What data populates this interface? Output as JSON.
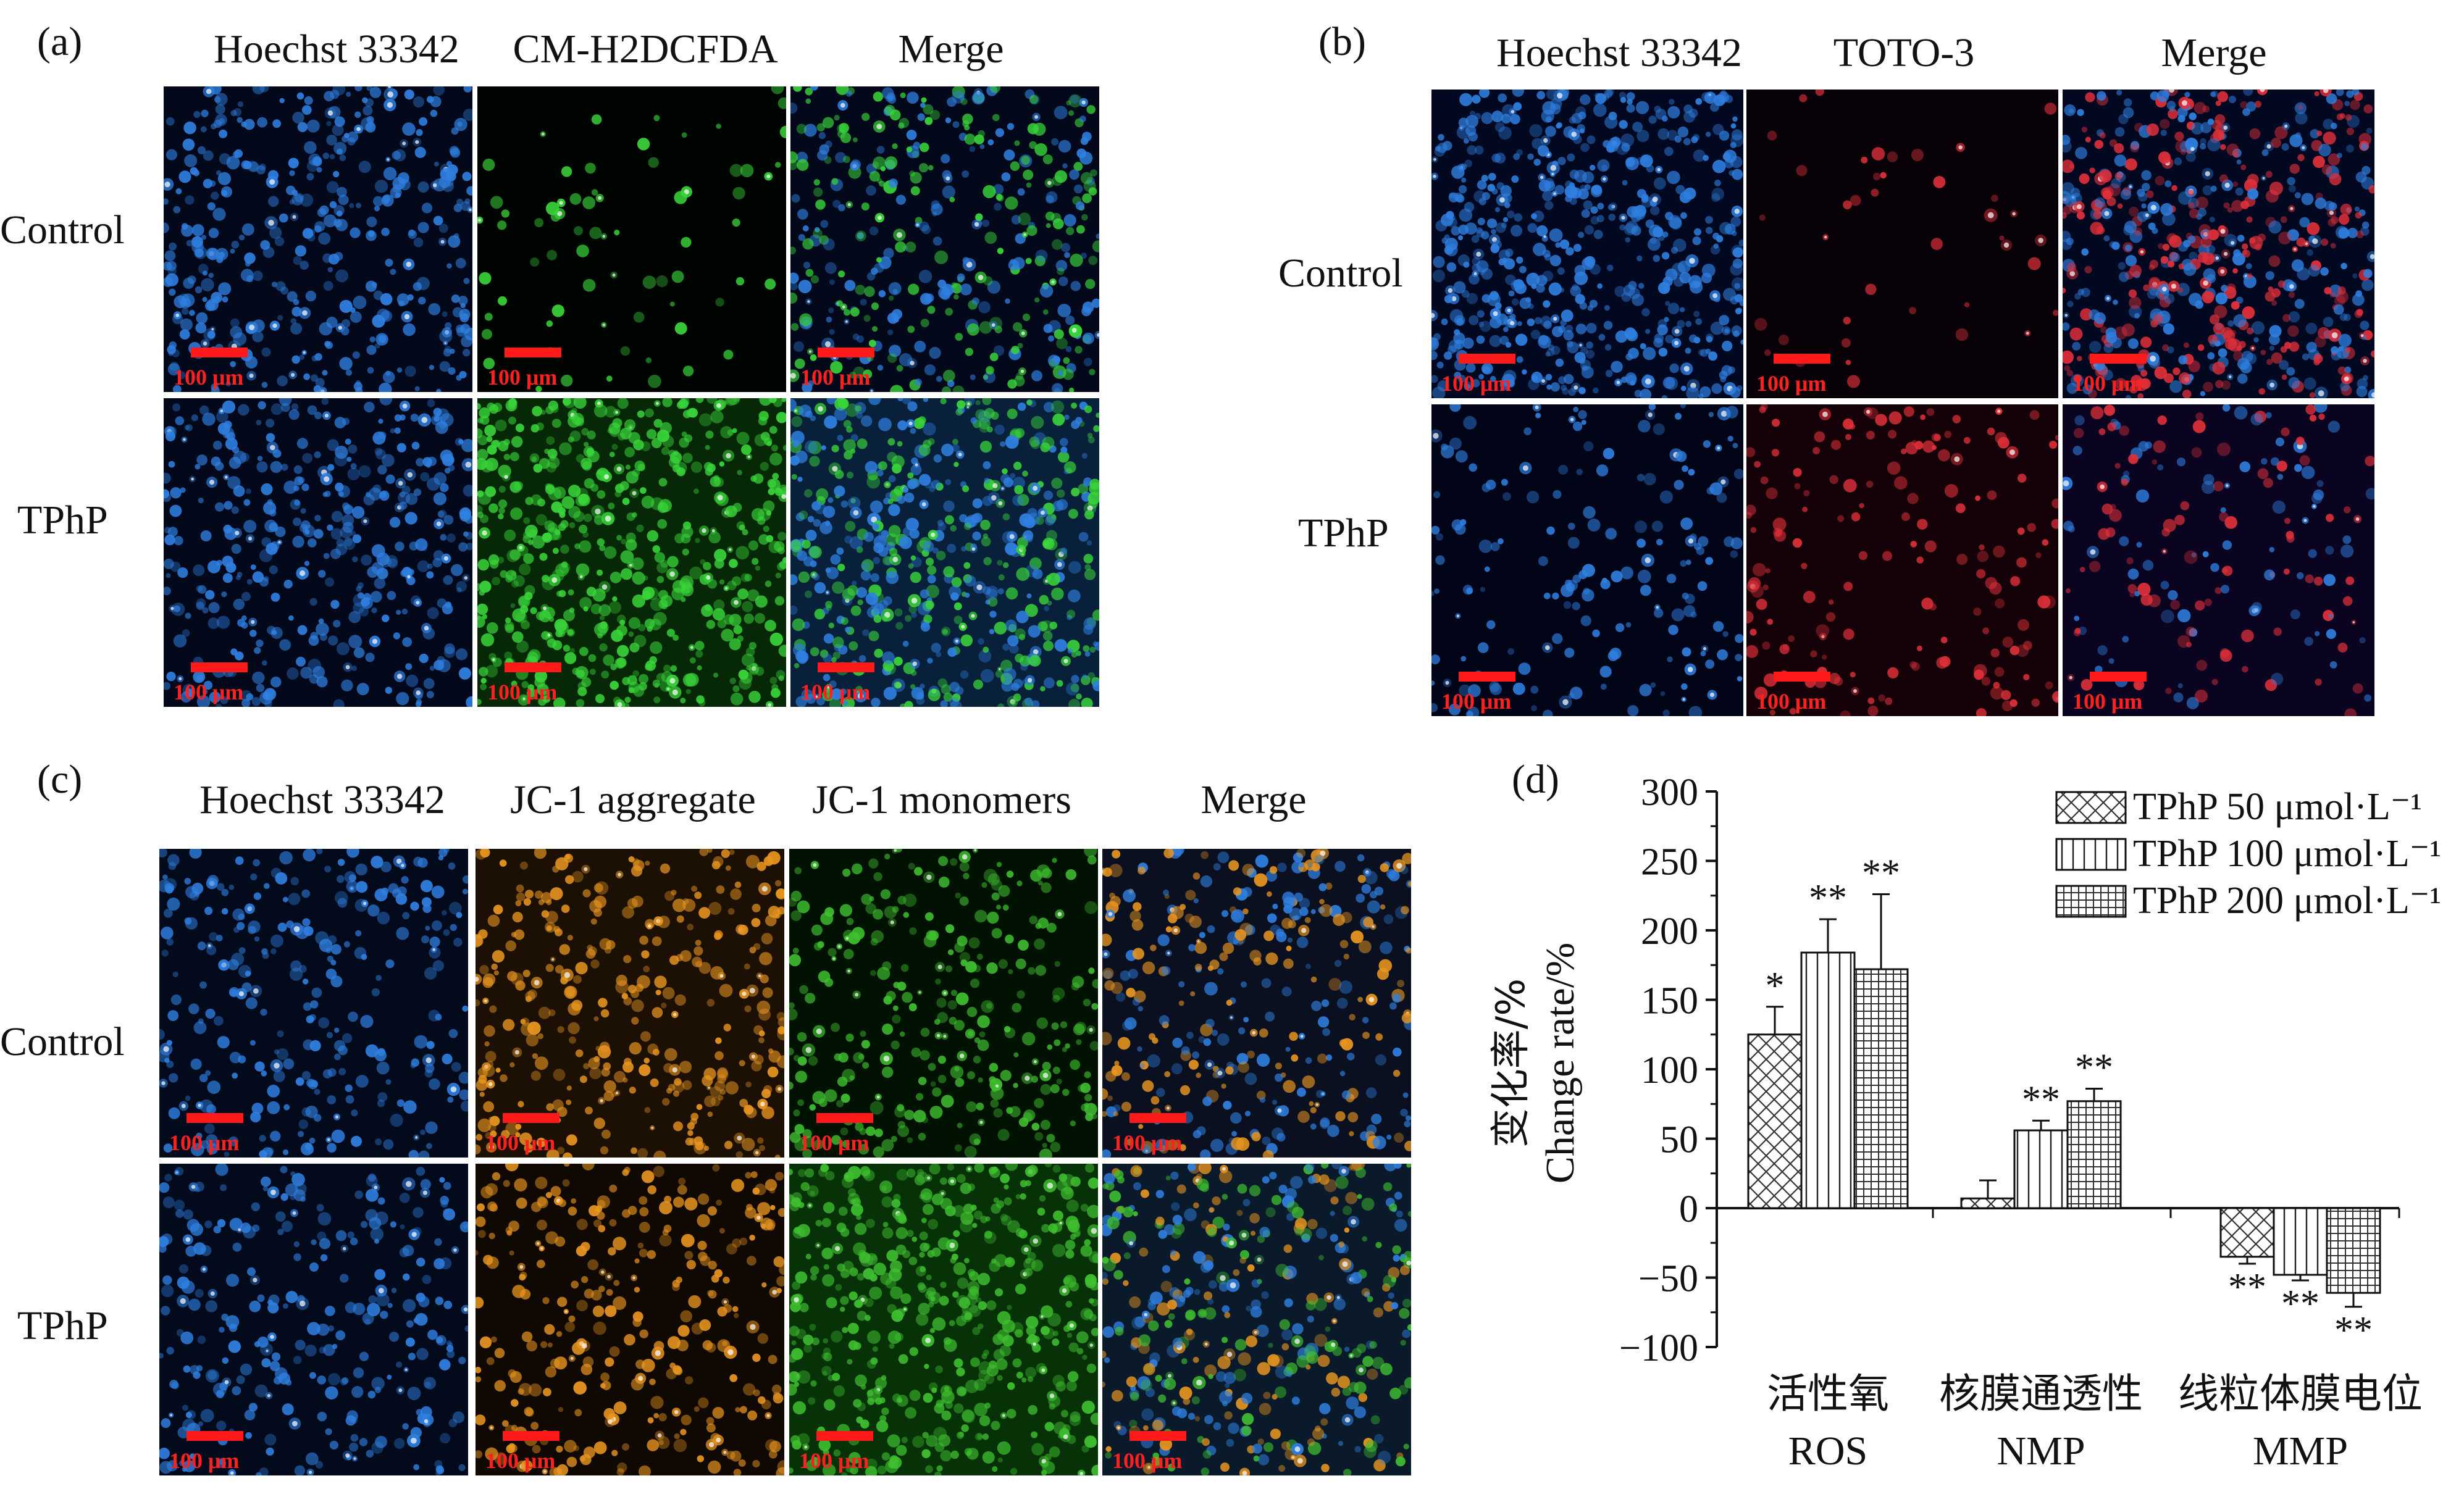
{
  "panels": {
    "a": {
      "tag": "(a)",
      "columns": [
        "Hoechst 33342",
        "CM-H2DCFDA",
        "Merge"
      ],
      "rows": [
        "Control",
        "TPhP"
      ]
    },
    "b": {
      "tag": "(b)",
      "columns": [
        "Hoechst 33342",
        "TOTO-3",
        "Merge"
      ],
      "rows": [
        "Control",
        "TPhP"
      ]
    },
    "c": {
      "tag": "(c)",
      "columns": [
        "Hoechst 33342",
        "JC-1 aggregate",
        "JC-1 monomers",
        "Merge"
      ],
      "rows": [
        "Control",
        "TPhP"
      ]
    },
    "d": {
      "tag": "(d)"
    }
  },
  "scale_bar_label": "100 μm",
  "colors": {
    "hoechst": "#2f7fe0",
    "cm_h2dcfda": "#39d43a",
    "toto3": "#e0303a",
    "jc1_aggregate": "#e89520",
    "jc1_monomer": "#3fbf30",
    "scale_bar": "#ff1a1a"
  },
  "chart_data": {
    "type": "bar",
    "categories": [
      "活性氧",
      "核膜通透性",
      "线粒体膜电位"
    ],
    "category_sublabels": [
      "ROS",
      "NMP",
      "MMP"
    ],
    "ylabel_cn": "变化率/%",
    "ylabel_en": "Change rate/%",
    "ylim": [
      -100,
      300
    ],
    "yticks": [
      -100,
      -50,
      0,
      50,
      100,
      150,
      200,
      250,
      300
    ],
    "ytick_labels": [
      "−100",
      "−50",
      "0",
      "50",
      "100",
      "150",
      "200",
      "250",
      "300"
    ],
    "legend_position": "top-right",
    "series": [
      {
        "name": "TPhP 50 μmol·L⁻¹",
        "pattern": "crosshatch",
        "values": [
          125,
          7,
          -35
        ],
        "errors": [
          20,
          13,
          5
        ],
        "significance": [
          "*",
          "",
          "**"
        ]
      },
      {
        "name": "TPhP 100 μmol·L⁻¹",
        "pattern": "vertical",
        "values": [
          184,
          56,
          -48
        ],
        "errors": [
          24,
          7,
          4
        ],
        "significance": [
          "**",
          "**",
          "**"
        ]
      },
      {
        "name": "TPhP 200 μmol·L⁻¹",
        "pattern": "grid",
        "values": [
          172,
          77,
          -61
        ],
        "errors": [
          54,
          9,
          10
        ],
        "significance": [
          "**",
          "**",
          "**"
        ]
      }
    ]
  }
}
